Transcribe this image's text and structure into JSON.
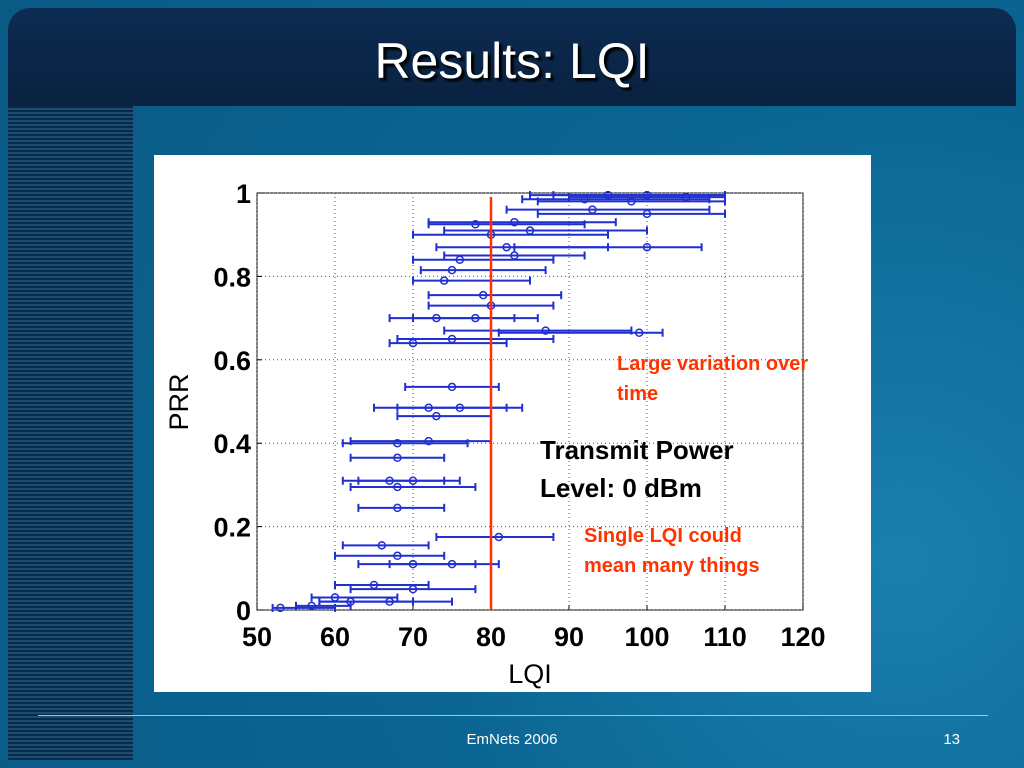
{
  "slide": {
    "title": "Results: LQI",
    "footer": "EmNets 2006",
    "page": "13"
  },
  "chart_data": {
    "type": "scatter",
    "x_label": "LQI",
    "y_label": "PRR",
    "xlim": [
      50,
      120
    ],
    "xticks": [
      50,
      60,
      70,
      80,
      90,
      100,
      110,
      120
    ],
    "ylim": [
      0,
      1
    ],
    "yticks": [
      0,
      0.2,
      0.4,
      0.6,
      0.8,
      1
    ],
    "grid": true,
    "vline": {
      "x": 80,
      "color": "#ff3300"
    },
    "annotations": [
      "Large variation over time",
      "Transmit Power Level: 0 dBm",
      "Single LQI could mean many things"
    ],
    "series": [
      {
        "color": "#1f2fd0",
        "x": [
          95,
          100,
          105,
          92,
          98,
          93,
          100,
          83,
          78,
          80,
          85,
          100,
          82,
          76,
          83,
          75,
          74,
          79,
          80,
          73,
          78,
          99,
          87,
          75,
          70,
          75,
          72,
          76,
          73,
          72,
          68,
          68,
          67,
          70,
          68,
          68,
          81,
          66,
          68,
          75,
          70,
          65,
          70,
          60,
          62,
          57,
          53,
          67
        ],
        "values": [
          0.995,
          0.995,
          0.99,
          0.985,
          0.98,
          0.96,
          0.95,
          0.93,
          0.925,
          0.9,
          0.91,
          0.87,
          0.87,
          0.84,
          0.85,
          0.815,
          0.79,
          0.755,
          0.73,
          0.7,
          0.7,
          0.665,
          0.67,
          0.65,
          0.64,
          0.535,
          0.485,
          0.485,
          0.465,
          0.405,
          0.4,
          0.365,
          0.31,
          0.31,
          0.295,
          0.245,
          0.175,
          0.155,
          0.13,
          0.11,
          0.11,
          0.06,
          0.05,
          0.03,
          0.02,
          0.01,
          0.005,
          0.02
        ],
        "x_low": [
          85,
          88,
          90,
          84,
          86,
          82,
          86,
          72,
          72,
          70,
          74,
          83,
          73,
          70,
          74,
          71,
          70,
          72,
          72,
          67,
          70,
          81,
          74,
          68,
          67,
          69,
          65,
          68,
          68,
          62,
          61,
          62,
          61,
          63,
          62,
          63,
          73,
          61,
          60,
          67,
          63,
          60,
          62,
          57,
          58,
          55,
          52,
          58
        ],
        "x_high": [
          110,
          110,
          110,
          108,
          110,
          108,
          110,
          96,
          92,
          95,
          100,
          107,
          95,
          88,
          92,
          87,
          85,
          89,
          88,
          83,
          86,
          102,
          98,
          88,
          82,
          81,
          82,
          84,
          80,
          80,
          77,
          74,
          74,
          76,
          78,
          74,
          88,
          72,
          74,
          81,
          78,
          72,
          78,
          68,
          70,
          62,
          60,
          75
        ]
      }
    ]
  }
}
